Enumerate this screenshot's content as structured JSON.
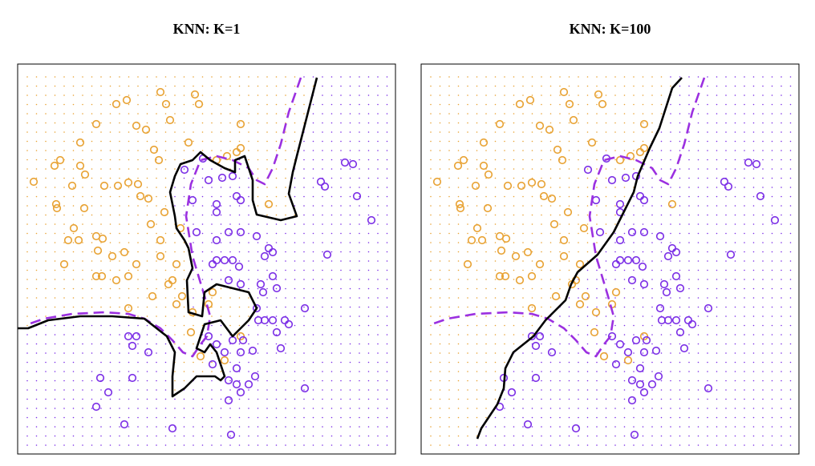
{
  "chart_data": [
    {
      "type": "scatter",
      "title": "KNN: K=1",
      "xlim": [
        0,
        471
      ],
      "ylim": [
        0,
        487
      ],
      "grid": true,
      "series": [
        {
          "color": "#e8a233",
          "x": [
            20,
            48,
            49,
            46,
            53,
            78,
            78,
            84,
            98,
            123,
            136,
            148,
            160,
            178,
            185,
            190,
            221,
            226,
            170,
            176,
            150,
            153,
            163,
            138,
            125,
            108,
            68,
            83,
            70,
            63,
            58,
            76,
            98,
            106,
            100,
            118,
            133,
            98,
            105,
            123,
            138,
            148,
            178,
            188,
            193,
            198,
            138,
            168,
            178,
            205,
            216,
            228,
            258,
            278,
            273,
            278,
            278,
            261,
            248,
            198,
            218,
            238,
            243,
            313,
            203,
            183,
            166,
            213
          ],
          "values": [
            340,
            312,
            307,
            360,
            367,
            389,
            360,
            349,
            412,
            437,
            442,
            410,
            405,
            452,
            437,
            417,
            449,
            437,
            380,
            367,
            337,
            322,
            319,
            339,
            335,
            335,
            335,
            307,
            282,
            267,
            237,
            267,
            272,
            269,
            254,
            247,
            252,
            222,
            222,
            217,
            222,
            237,
            267,
            212,
            217,
            187,
            182,
            197,
            247,
            197,
            152,
            122,
            117,
            147,
            377,
            382,
            412,
            372,
            367,
            237,
            177,
            187,
            202,
            312,
            282,
            302,
            287,
            389
          ]
        },
        {
          "color": "#7b2ee6",
          "x": [
            208,
            231,
            238,
            255,
            268,
            218,
            248,
            248,
            278,
            273,
            223,
            248,
            263,
            278,
            298,
            313,
            308,
            318,
            248,
            258,
            268,
            243,
            276,
            263,
            278,
            303,
            306,
            323,
            358,
            298,
            300,
            308,
            318,
            333,
            238,
            248,
            268,
            278,
            281,
            293,
            258,
            243,
            273,
            263,
            273,
            288,
            296,
            263,
            278,
            138,
            148,
            143,
            163,
            103,
            143,
            113,
            98,
            133,
            193,
            266,
            358,
            323,
            328,
            408,
            418,
            378,
            383,
            423,
            441,
            386,
            338,
            318
          ],
          "values": [
            355,
            369,
            342,
            345,
            347,
            317,
            312,
            302,
            317,
            322,
            277,
            267,
            277,
            277,
            272,
            257,
            247,
            252,
            242,
            242,
            242,
            237,
            234,
            217,
            212,
            212,
            202,
            207,
            182,
            182,
            167,
            167,
            167,
            167,
            147,
            137,
            142,
            127,
            142,
            129,
            127,
            112,
            107,
            92,
            87,
            87,
            97,
            67,
            77,
            147,
            147,
            135,
            127,
            95,
            95,
            77,
            59,
            37,
            32,
            24,
            82,
            152,
            132,
            364,
            362,
            340,
            334,
            322,
            292,
            249,
            162,
            222
          ]
        }
      ],
      "lines": [
        {
          "color": "#000000",
          "style": "solid",
          "x": [
            373,
            348,
            343,
            338,
            348,
            328,
            298,
            293,
            293,
            283,
            271,
            271,
            258,
            240,
            228,
            218,
            203,
            196,
            190,
            196,
            198,
            208,
            213,
            218,
            211,
            213,
            230,
            233,
            248,
            288,
            298,
            288,
            278,
            268,
            253,
            233,
            223,
            233,
            240,
            248,
            258,
            253,
            246,
            223,
            208,
            193,
            193,
            196,
            186,
            158,
            118,
            78,
            38,
            13,
            0
          ],
          "values": [
            470,
            372,
            352,
            325,
            297,
            292,
            299,
            317,
            342,
            372,
            367,
            352,
            357,
            367,
            377,
            367,
            362,
            347,
            327,
            297,
            282,
            267,
            257,
            232,
            217,
            177,
            172,
            202,
            212,
            202,
            182,
            167,
            157,
            147,
            167,
            162,
            132,
            127,
            137,
            127,
            97,
            92,
            97,
            97,
            82,
            72,
            97,
            127,
            147,
            169,
            172,
            172,
            167,
            157,
            157
          ]
        },
        {
          "color": "#9b30e0",
          "style": "dashed",
          "x": [
            353,
            338,
            328,
            318,
            308,
            298,
            288,
            268,
            248,
            228,
            216,
            210,
            218,
            233,
            240,
            236,
            228,
            218,
            206,
            193,
            178,
            158,
            138,
            108,
            68,
            33,
            13
          ],
          "values": [
            470,
            427,
            387,
            357,
            337,
            342,
            357,
            367,
            372,
            367,
            337,
            297,
            247,
            197,
            172,
            147,
            137,
            122,
            127,
            142,
            157,
            169,
            175,
            177,
            175,
            169,
            162
          ]
        }
      ]
    },
    {
      "type": "scatter",
      "title": "KNN: K=100",
      "xlim": [
        0,
        471
      ],
      "ylim": [
        0,
        487
      ],
      "grid": true,
      "series": [
        {
          "color": "#e8a233",
          "x": [
            20,
            48,
            49,
            46,
            53,
            78,
            78,
            84,
            98,
            123,
            136,
            148,
            160,
            178,
            185,
            190,
            221,
            226,
            170,
            176,
            150,
            153,
            163,
            138,
            125,
            108,
            68,
            83,
            70,
            63,
            58,
            76,
            98,
            106,
            100,
            118,
            133,
            98,
            105,
            123,
            138,
            148,
            178,
            188,
            193,
            198,
            138,
            168,
            178,
            205,
            216,
            228,
            258,
            278,
            273,
            278,
            278,
            261,
            248,
            198,
            218,
            238,
            243,
            313,
            203,
            183,
            166,
            213
          ],
          "values": [
            340,
            312,
            307,
            360,
            367,
            389,
            360,
            349,
            412,
            437,
            442,
            410,
            405,
            452,
            437,
            417,
            449,
            437,
            380,
            367,
            337,
            322,
            319,
            339,
            335,
            335,
            335,
            307,
            282,
            267,
            237,
            267,
            272,
            269,
            254,
            247,
            252,
            222,
            222,
            217,
            222,
            237,
            267,
            212,
            217,
            187,
            182,
            197,
            247,
            197,
            152,
            122,
            117,
            147,
            377,
            382,
            412,
            372,
            367,
            237,
            177,
            187,
            202,
            312,
            282,
            302,
            287,
            389
          ]
        },
        {
          "color": "#7b2ee6",
          "x": [
            208,
            231,
            238,
            255,
            268,
            218,
            248,
            248,
            278,
            273,
            223,
            248,
            263,
            278,
            298,
            313,
            308,
            318,
            248,
            258,
            268,
            243,
            276,
            263,
            278,
            303,
            306,
            323,
            358,
            298,
            300,
            308,
            318,
            333,
            238,
            248,
            268,
            278,
            281,
            293,
            258,
            243,
            273,
            263,
            273,
            288,
            296,
            263,
            278,
            138,
            148,
            143,
            163,
            103,
            143,
            113,
            98,
            133,
            193,
            266,
            358,
            323,
            328,
            408,
            418,
            378,
            383,
            423,
            441,
            386,
            338,
            318
          ],
          "values": [
            355,
            369,
            342,
            345,
            347,
            317,
            312,
            302,
            317,
            322,
            277,
            267,
            277,
            277,
            272,
            257,
            247,
            252,
            242,
            242,
            242,
            237,
            234,
            217,
            212,
            212,
            202,
            207,
            182,
            182,
            167,
            167,
            167,
            167,
            147,
            137,
            142,
            127,
            142,
            129,
            127,
            112,
            107,
            92,
            87,
            87,
            97,
            67,
            77,
            147,
            147,
            135,
            127,
            95,
            95,
            77,
            59,
            37,
            32,
            24,
            82,
            152,
            132,
            364,
            362,
            340,
            334,
            322,
            292,
            249,
            162,
            222
          ]
        }
      ],
      "lines": [
        {
          "color": "#000000",
          "style": "solid",
          "x": [
            325,
            313,
            297,
            285,
            270,
            265,
            255,
            240,
            220,
            195,
            187,
            180,
            155,
            140,
            115,
            105,
            103,
            95,
            75,
            70
          ],
          "values": [
            470,
            457,
            407,
            382,
            347,
            327,
            307,
            277,
            249,
            227,
            212,
            192,
            167,
            147,
            127,
            107,
            82,
            62,
            32,
            19
          ]
        },
        {
          "color": "#9b30e0",
          "style": "dashed",
          "x": [
            353,
            338,
            328,
            318,
            308,
            298,
            288,
            268,
            248,
            228,
            216,
            210,
            218,
            233,
            240,
            236,
            228,
            218,
            206,
            193,
            178,
            158,
            138,
            108,
            68,
            33,
            13
          ],
          "values": [
            470,
            427,
            387,
            357,
            337,
            342,
            357,
            367,
            372,
            367,
            337,
            297,
            247,
            197,
            172,
            147,
            137,
            122,
            127,
            142,
            157,
            169,
            175,
            177,
            175,
            169,
            162
          ]
        }
      ]
    }
  ]
}
